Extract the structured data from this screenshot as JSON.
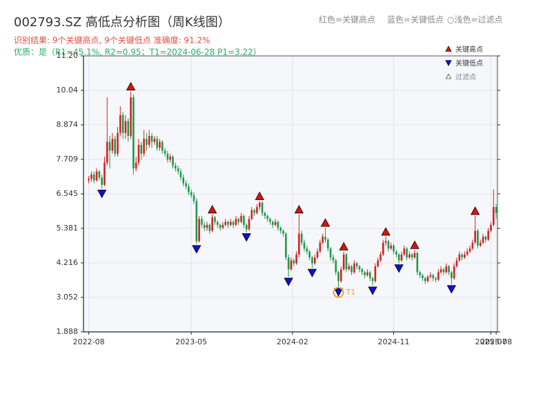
{
  "chart_data": {
    "type": "candlestick",
    "title": "002793.SZ 高低点分析图（周K线图）",
    "header_notes": [
      "红色=关键高点",
      "蓝色=关键低点",
      "○浅色=过滤点"
    ],
    "result_text": "识别结果: 9个关键高点, 9个关键低点  准确度: 91.2%",
    "quality_text": "优质：是（R1=45.1%, R2=0.95；T1=2024-06-28 P1=3.22）",
    "up_color": "#d42020",
    "down_color": "#1a9a4a",
    "ylim": [
      1.888,
      11.2
    ],
    "yticks": [
      1.888,
      3.052,
      4.216,
      5.381,
      6.545,
      7.709,
      8.874,
      10.04,
      {
        "value": 11.2,
        "label": "11.20"
      }
    ],
    "xlim": [
      -2,
      155.5
    ],
    "xticks": [
      {
        "value": 0,
        "label": "2022-08"
      },
      {
        "value": 39,
        "label": "2023-05"
      },
      {
        "value": 77.5,
        "label": "2024-02"
      },
      {
        "value": 116,
        "label": "2024-11"
      },
      {
        "value": 153,
        "label": "2025-07"
      },
      {
        "value": 155,
        "label": "2025-08"
      }
    ],
    "grid": true,
    "ohlc": [
      [
        7.0,
        7.15,
        6.9,
        7.05
      ],
      [
        7.05,
        7.3,
        6.95,
        7.2
      ],
      [
        7.2,
        7.3,
        6.9,
        7.0
      ],
      [
        7.0,
        7.4,
        6.95,
        7.3
      ],
      [
        7.3,
        7.35,
        7.0,
        7.1
      ],
      [
        7.1,
        7.2,
        6.72,
        6.85
      ],
      [
        6.85,
        7.8,
        6.8,
        7.6
      ],
      [
        7.6,
        9.8,
        7.5,
        8.3
      ],
      [
        8.3,
        8.5,
        7.4,
        8.0
      ],
      [
        8.0,
        8.6,
        7.9,
        8.4
      ],
      [
        8.4,
        8.5,
        7.8,
        7.9
      ],
      [
        7.9,
        8.8,
        7.8,
        8.6
      ],
      [
        8.6,
        9.5,
        8.5,
        9.2
      ],
      [
        9.2,
        9.3,
        8.4,
        8.6
      ],
      [
        8.6,
        9.2,
        8.4,
        9.0
      ],
      [
        9.0,
        9.1,
        8.3,
        8.5
      ],
      [
        8.5,
        10.0,
        8.4,
        9.8
      ],
      [
        9.8,
        9.9,
        7.2,
        7.4
      ],
      [
        7.4,
        7.8,
        7.3,
        7.6
      ],
      [
        7.6,
        8.4,
        7.5,
        8.2
      ],
      [
        8.2,
        8.3,
        7.7,
        7.9
      ],
      [
        7.9,
        8.7,
        7.8,
        8.4
      ],
      [
        8.4,
        8.6,
        8.0,
        8.2
      ],
      [
        8.2,
        8.7,
        8.1,
        8.5
      ],
      [
        8.5,
        8.6,
        8.1,
        8.3
      ],
      [
        8.3,
        8.5,
        8.2,
        8.4
      ],
      [
        8.4,
        8.5,
        8.0,
        8.1
      ],
      [
        8.1,
        8.4,
        8.0,
        8.3
      ],
      [
        8.3,
        8.35,
        7.9,
        8.0
      ],
      [
        8.0,
        8.1,
        7.8,
        7.9
      ],
      [
        7.9,
        8.0,
        7.6,
        7.7
      ],
      [
        7.7,
        7.9,
        7.6,
        7.8
      ],
      [
        7.8,
        7.85,
        7.4,
        7.5
      ],
      [
        7.5,
        7.6,
        7.3,
        7.4
      ],
      [
        7.4,
        7.5,
        7.2,
        7.3
      ],
      [
        7.3,
        7.4,
        7.0,
        7.1
      ],
      [
        7.1,
        7.2,
        6.8,
        6.9
      ],
      [
        6.9,
        7.0,
        6.7,
        6.8
      ],
      [
        6.8,
        6.9,
        6.5,
        6.6
      ],
      [
        6.6,
        6.7,
        6.4,
        6.5
      ],
      [
        6.5,
        6.6,
        6.2,
        6.3
      ],
      [
        6.3,
        6.4,
        4.85,
        4.95
      ],
      [
        4.95,
        5.8,
        4.9,
        5.7
      ],
      [
        5.7,
        5.8,
        5.4,
        5.5
      ],
      [
        5.5,
        5.6,
        5.3,
        5.4
      ],
      [
        5.4,
        5.6,
        5.3,
        5.5
      ],
      [
        5.5,
        5.55,
        5.2,
        5.3
      ],
      [
        5.3,
        5.85,
        5.25,
        5.75
      ],
      [
        5.75,
        5.8,
        5.5,
        5.6
      ],
      [
        5.6,
        5.65,
        5.4,
        5.5
      ],
      [
        5.5,
        5.55,
        5.3,
        5.4
      ],
      [
        5.4,
        5.6,
        5.35,
        5.5
      ],
      [
        5.5,
        5.7,
        5.45,
        5.6
      ],
      [
        5.6,
        5.65,
        5.4,
        5.5
      ],
      [
        5.5,
        5.7,
        5.45,
        5.6
      ],
      [
        5.6,
        5.65,
        5.4,
        5.5
      ],
      [
        5.5,
        5.8,
        5.45,
        5.7
      ],
      [
        5.7,
        5.75,
        5.5,
        5.6
      ],
      [
        5.6,
        5.9,
        5.55,
        5.8
      ],
      [
        5.8,
        5.85,
        5.4,
        5.5
      ],
      [
        5.5,
        5.55,
        5.25,
        5.35
      ],
      [
        5.35,
        5.8,
        5.3,
        5.7
      ],
      [
        5.7,
        6.1,
        5.65,
        6.0
      ],
      [
        6.0,
        6.05,
        5.8,
        5.9
      ],
      [
        5.9,
        6.2,
        5.85,
        6.1
      ],
      [
        6.1,
        6.3,
        6.0,
        6.25
      ],
      [
        6.25,
        6.3,
        5.8,
        5.9
      ],
      [
        5.9,
        5.95,
        5.7,
        5.8
      ],
      [
        5.8,
        5.85,
        5.6,
        5.7
      ],
      [
        5.7,
        5.75,
        5.5,
        5.6
      ],
      [
        5.6,
        5.65,
        5.4,
        5.5
      ],
      [
        5.5,
        5.7,
        5.45,
        5.6
      ],
      [
        5.6,
        5.65,
        5.3,
        5.4
      ],
      [
        5.4,
        5.45,
        5.2,
        5.3
      ],
      [
        5.3,
        5.35,
        5.1,
        5.2
      ],
      [
        5.2,
        5.25,
        4.3,
        4.4
      ],
      [
        4.4,
        4.5,
        3.75,
        4.0
      ],
      [
        4.0,
        4.4,
        3.95,
        4.3
      ],
      [
        4.3,
        4.35,
        4.1,
        4.2
      ],
      [
        4.2,
        4.6,
        4.15,
        4.5
      ],
      [
        4.5,
        5.85,
        4.4,
        5.2
      ],
      [
        5.2,
        5.3,
        4.8,
        4.9
      ],
      [
        4.9,
        5.0,
        4.6,
        4.7
      ],
      [
        4.7,
        4.8,
        4.5,
        4.6
      ],
      [
        4.6,
        4.65,
        4.3,
        4.4
      ],
      [
        4.4,
        4.45,
        4.05,
        4.2
      ],
      [
        4.2,
        4.5,
        4.15,
        4.4
      ],
      [
        4.4,
        4.7,
        4.35,
        4.6
      ],
      [
        4.6,
        5.0,
        4.55,
        4.9
      ],
      [
        4.9,
        5.2,
        4.85,
        5.1
      ],
      [
        5.1,
        5.4,
        4.9,
        5.0
      ],
      [
        5.0,
        5.05,
        4.6,
        4.7
      ],
      [
        4.7,
        4.75,
        4.3,
        4.4
      ],
      [
        4.4,
        4.5,
        4.2,
        4.3
      ],
      [
        4.3,
        4.35,
        3.8,
        3.9
      ],
      [
        3.9,
        3.95,
        3.4,
        3.6
      ],
      [
        3.6,
        4.1,
        3.55,
        4.0
      ],
      [
        4.0,
        4.6,
        3.95,
        4.5
      ],
      [
        4.5,
        4.55,
        3.9,
        4.0
      ],
      [
        4.0,
        4.2,
        3.95,
        4.1
      ],
      [
        4.1,
        4.15,
        3.8,
        3.9
      ],
      [
        3.9,
        4.3,
        3.85,
        4.2
      ],
      [
        4.2,
        4.25,
        4.0,
        4.1
      ],
      [
        4.1,
        4.15,
        3.9,
        4.0
      ],
      [
        4.0,
        4.05,
        3.8,
        3.9
      ],
      [
        3.9,
        3.95,
        3.7,
        3.8
      ],
      [
        3.8,
        4.0,
        3.75,
        3.9
      ],
      [
        3.9,
        3.95,
        3.6,
        3.7
      ],
      [
        3.7,
        3.75,
        3.45,
        3.6
      ],
      [
        3.6,
        4.2,
        3.55,
        4.1
      ],
      [
        4.1,
        4.4,
        4.05,
        4.3
      ],
      [
        4.3,
        4.6,
        4.25,
        4.5
      ],
      [
        4.5,
        5.0,
        4.45,
        4.9
      ],
      [
        4.9,
        5.1,
        4.8,
        4.95
      ],
      [
        4.95,
        5.0,
        4.6,
        4.7
      ],
      [
        4.7,
        4.9,
        4.65,
        4.8
      ],
      [
        4.8,
        4.85,
        4.5,
        4.6
      ],
      [
        4.6,
        4.65,
        4.4,
        4.5
      ],
      [
        4.5,
        4.55,
        4.2,
        4.3
      ],
      [
        4.3,
        4.6,
        4.25,
        4.5
      ],
      [
        4.5,
        4.8,
        4.45,
        4.7
      ],
      [
        4.7,
        4.75,
        4.3,
        4.4
      ],
      [
        4.4,
        4.6,
        4.35,
        4.5
      ],
      [
        4.5,
        4.55,
        4.3,
        4.4
      ],
      [
        4.4,
        4.65,
        4.35,
        4.55
      ],
      [
        4.55,
        4.6,
        3.8,
        3.9
      ],
      [
        3.9,
        3.95,
        3.7,
        3.8
      ],
      [
        3.8,
        3.85,
        3.6,
        3.7
      ],
      [
        3.7,
        3.75,
        3.5,
        3.6
      ],
      [
        3.6,
        3.8,
        3.55,
        3.75
      ],
      [
        3.75,
        3.9,
        3.7,
        3.8
      ],
      [
        3.8,
        3.85,
        3.6,
        3.7
      ],
      [
        3.7,
        3.75,
        3.55,
        3.65
      ],
      [
        3.65,
        4.0,
        3.6,
        3.9
      ],
      [
        3.9,
        4.1,
        3.85,
        4.0
      ],
      [
        4.0,
        4.05,
        3.8,
        3.9
      ],
      [
        3.9,
        4.2,
        3.85,
        4.1
      ],
      [
        4.1,
        4.15,
        3.8,
        3.9
      ],
      [
        3.9,
        3.95,
        3.5,
        3.7
      ],
      [
        3.7,
        4.2,
        3.65,
        4.1
      ],
      [
        4.1,
        4.4,
        4.05,
        4.3
      ],
      [
        4.3,
        4.6,
        4.25,
        4.5
      ],
      [
        4.5,
        4.55,
        4.3,
        4.4
      ],
      [
        4.4,
        4.6,
        4.35,
        4.5
      ],
      [
        4.5,
        4.7,
        4.45,
        4.6
      ],
      [
        4.6,
        4.8,
        4.55,
        4.7
      ],
      [
        4.7,
        5.0,
        4.65,
        4.9
      ],
      [
        4.9,
        5.8,
        4.85,
        5.3
      ],
      [
        5.3,
        5.35,
        4.7,
        4.8
      ],
      [
        4.8,
        5.0,
        4.75,
        4.9
      ],
      [
        4.9,
        5.2,
        4.85,
        5.1
      ],
      [
        5.1,
        5.15,
        4.9,
        5.0
      ],
      [
        5.0,
        5.4,
        4.95,
        5.3
      ],
      [
        5.3,
        5.6,
        5.25,
        5.5
      ],
      [
        5.5,
        6.7,
        5.45,
        6.1
      ],
      [
        6.1,
        6.2,
        5.7,
        5.9
      ]
    ],
    "key_highs": {
      "name": "关键高点",
      "color": "#e01010",
      "x": [
        16,
        47,
        65,
        80,
        90,
        97,
        113,
        124,
        147
      ],
      "values": [
        10.0,
        5.85,
        6.3,
        5.85,
        5.4,
        4.6,
        5.1,
        4.65,
        5.8
      ]
    },
    "key_lows": {
      "name": "关键低点",
      "color": "#1010d0",
      "x": [
        5,
        41,
        60,
        76,
        85,
        95,
        108,
        118,
        138
      ],
      "values": [
        6.72,
        4.85,
        5.25,
        3.75,
        4.05,
        3.4,
        3.45,
        4.2,
        3.5
      ]
    },
    "filtered": {
      "name": "过滤点",
      "color": "#ffffff"
    },
    "t1_point": {
      "label": "T1",
      "x": 95,
      "value": 3.22,
      "color": "#f0a030"
    }
  }
}
